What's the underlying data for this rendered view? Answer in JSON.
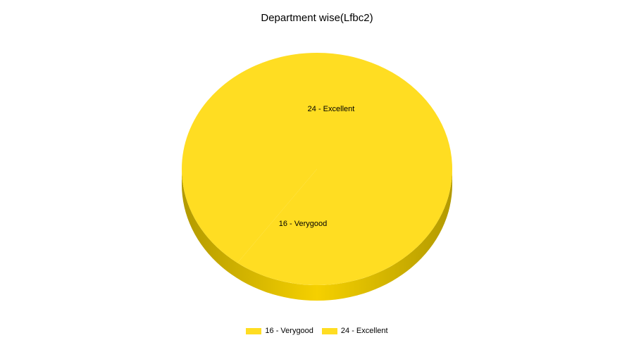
{
  "chart_data": {
    "type": "pie",
    "title": "Department wise(Lfbc2)",
    "categories": [
      "16 - Verygood",
      "24 - Excellent"
    ],
    "values": [
      16,
      24
    ],
    "slice_labels": [
      "16 - Verygood",
      "24 - Excellent"
    ],
    "colors": [
      "#FFDD22",
      "#FFDD22"
    ],
    "side_color_dark": "#B39A00",
    "side_color_light": "#F5D000",
    "legend_position": "bottom",
    "style": "3d"
  },
  "legend": {
    "items": [
      {
        "label": "16 - Verygood",
        "color": "#FFDD22"
      },
      {
        "label": "24 - Excellent",
        "color": "#FFDD22"
      }
    ]
  }
}
